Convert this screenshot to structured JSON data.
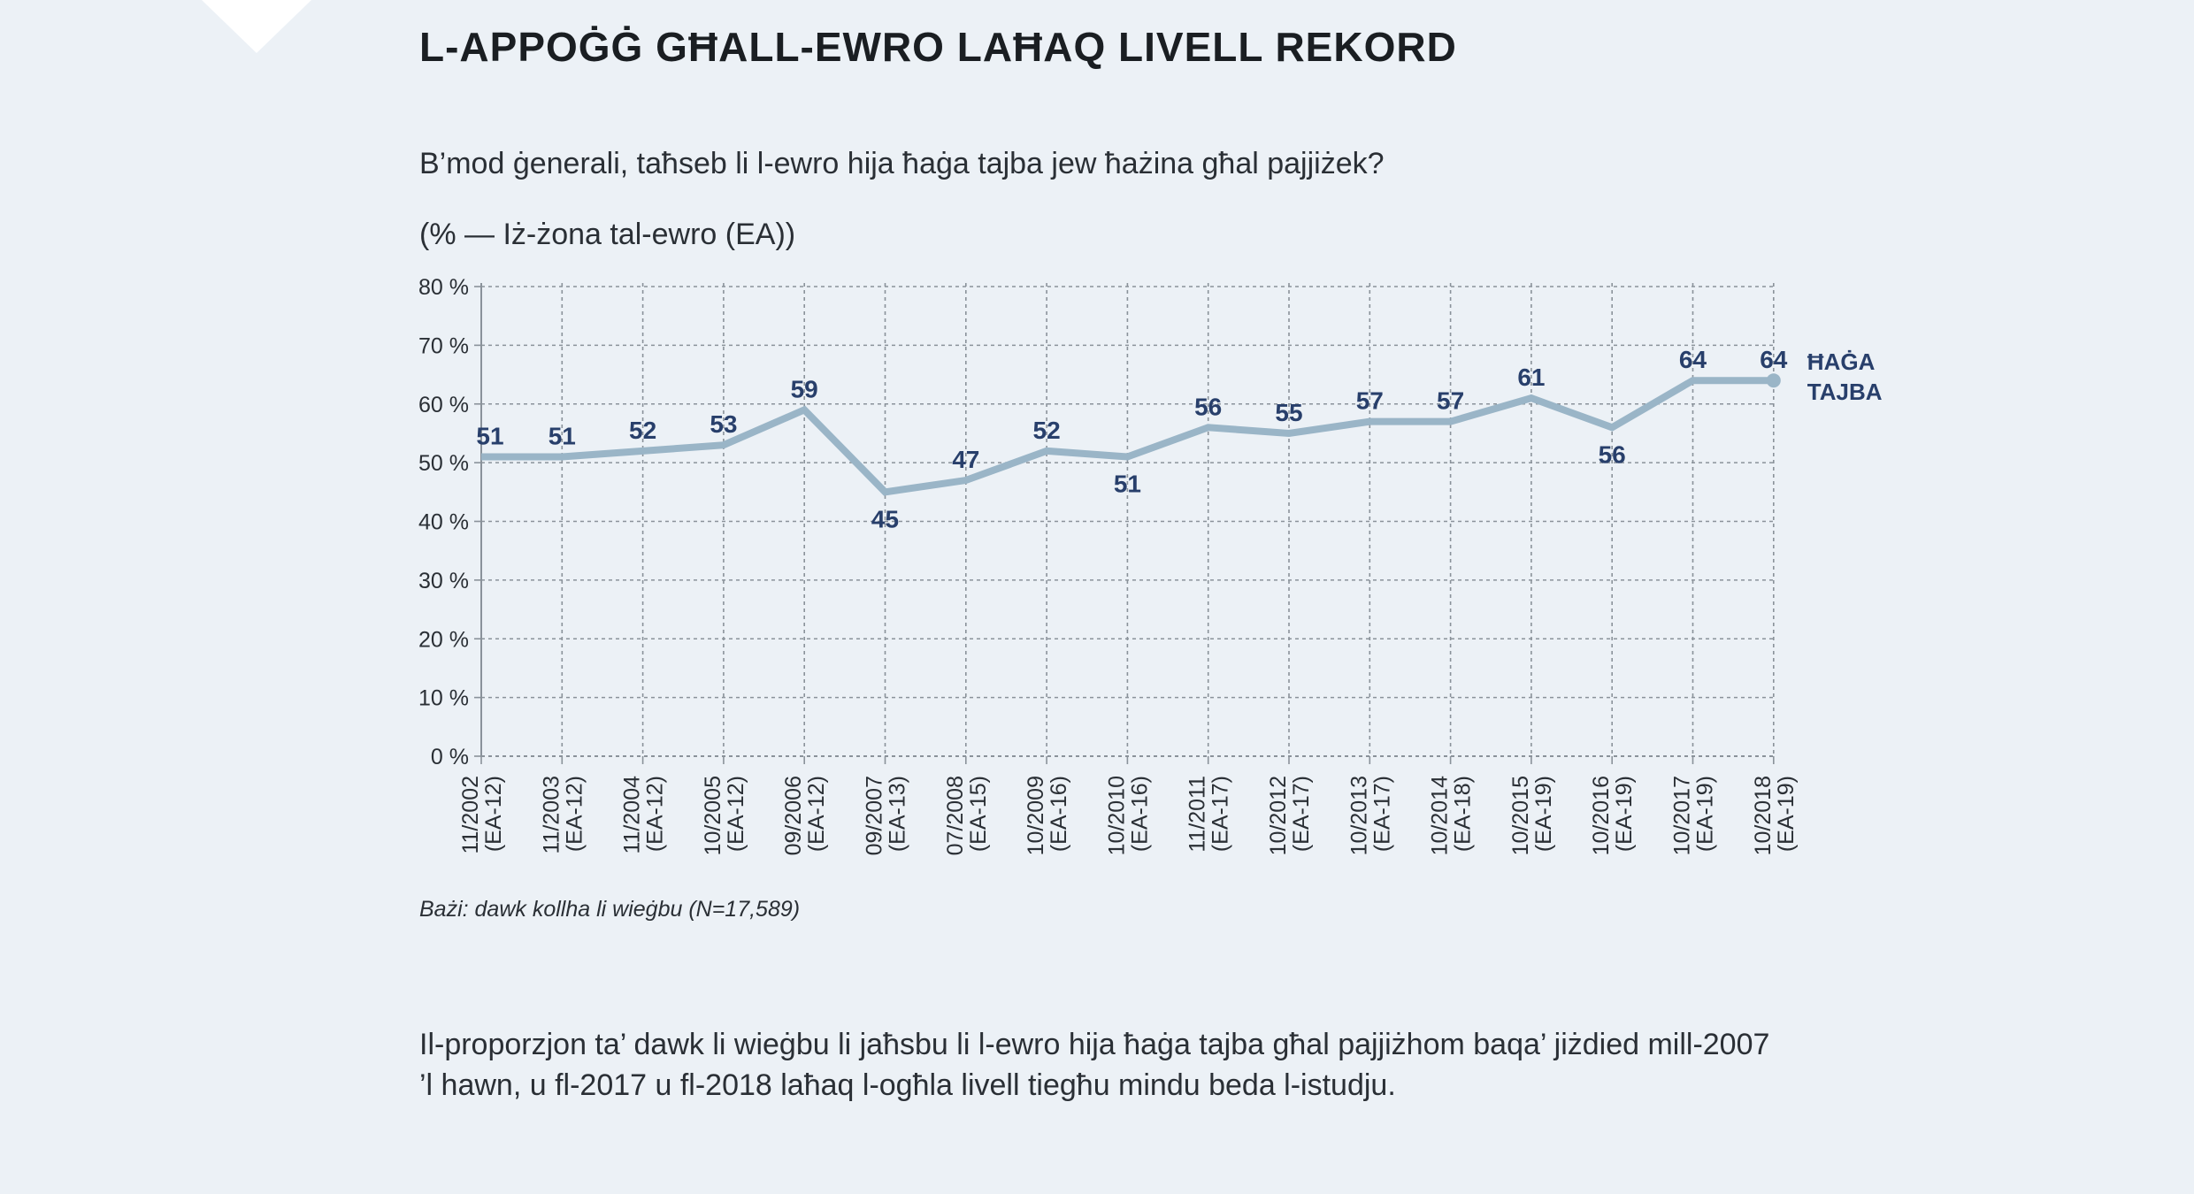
{
  "header": {
    "title": "L-APPOĠĠ GĦALL-EWRO LAĦAQ LIVELL REKORD",
    "question": "B’mod ġenerali, taħseb li l-ewro hija ħaġa tajba jew ħażina għal pajjiżek?",
    "unit_note": "(% — Iż-żona tal-ewro (EA))"
  },
  "chart_data": {
    "type": "line",
    "title": "",
    "xlabel": "",
    "ylabel": "",
    "ylim": [
      0,
      80
    ],
    "y_ticks": [
      0,
      10,
      20,
      30,
      40,
      50,
      60,
      70,
      80
    ],
    "y_tick_labels": [
      "0 %",
      "10 %",
      "20 %",
      "30 %",
      "40 %",
      "50 %",
      "60 %",
      "70 %",
      "80 %"
    ],
    "grid": true,
    "categories": [
      {
        "date": "11/2002",
        "zone": "(EA-12)"
      },
      {
        "date": "11/2003",
        "zone": "(EA-12)"
      },
      {
        "date": "11/2004",
        "zone": "(EA-12)"
      },
      {
        "date": "10/2005",
        "zone": "(EA-12)"
      },
      {
        "date": "09/2006",
        "zone": "(EA-12)"
      },
      {
        "date": "09/2007",
        "zone": "(EA-13)"
      },
      {
        "date": "07/2008",
        "zone": "(EA-15)"
      },
      {
        "date": "10/2009",
        "zone": "(EA-16)"
      },
      {
        "date": "10/2010",
        "zone": "(EA-16)"
      },
      {
        "date": "11/2011",
        "zone": "(EA-17)"
      },
      {
        "date": "10/2012",
        "zone": "(EA-17)"
      },
      {
        "date": "10/2013",
        "zone": "(EA-17)"
      },
      {
        "date": "10/2014",
        "zone": "(EA-18)"
      },
      {
        "date": "10/2015",
        "zone": "(EA-19)"
      },
      {
        "date": "10/2016",
        "zone": "(EA-19)"
      },
      {
        "date": "10/2017",
        "zone": "(EA-19)"
      },
      {
        "date": "10/2018",
        "zone": "(EA-19)"
      }
    ],
    "series": [
      {
        "name": "ĦAĠA TAJBA",
        "name_lines": [
          "ĦAĠA",
          "TAJBA"
        ],
        "color": "#9ab5c7",
        "label_color": "#283f6b",
        "values": [
          51,
          51,
          52,
          53,
          59,
          45,
          47,
          52,
          51,
          56,
          55,
          57,
          57,
          61,
          56,
          64,
          64
        ],
        "label_positions": [
          "above",
          "above",
          "above",
          "above",
          "above",
          "below",
          "above",
          "above",
          "below",
          "above",
          "above",
          "above",
          "above",
          "above",
          "below",
          "above",
          "above"
        ]
      }
    ]
  },
  "footer": {
    "base_note": "Bażi: dawk kollha li wieġbu (N=17,589)",
    "summary_line1": "Il-proporzjon ta’ dawk li wieġbu li jaħsbu li l-ewro hija ħaġa tajba għal pajjiżhom baqa’ jiżdied mill-2007",
    "summary_line2": "’l hawn, u fl-2017 u fl-2018 laħaq l-ogħla livell tiegħu mindu beda l-istudju."
  }
}
